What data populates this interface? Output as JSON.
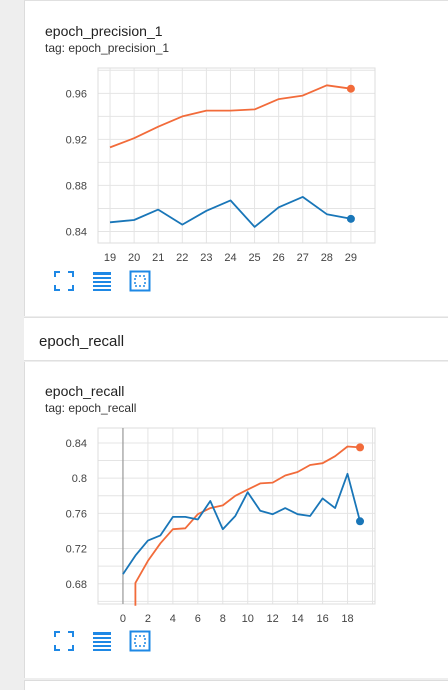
{
  "section": {
    "title": "epoch_recall"
  },
  "charts": [
    {
      "title": "epoch_precision_1",
      "tag": "tag: epoch_precision_1"
    },
    {
      "title": "epoch_recall",
      "tag": "tag: epoch_recall"
    }
  ],
  "icons": [
    "fullscreen-icon",
    "data-table-icon",
    "fit-domain-icon"
  ],
  "colors": {
    "train": "#f26b3a",
    "validation": "#1976b8",
    "icon": "#1e88e5"
  },
  "chart_data": [
    {
      "type": "line",
      "title": "",
      "xlabel": "",
      "ylabel": "",
      "xlim": [
        18.5,
        30
      ],
      "ylim": [
        0.83,
        0.982
      ],
      "x_ticks": [
        19,
        20,
        21,
        22,
        23,
        24,
        25,
        26,
        27,
        28,
        29
      ],
      "y_ticks": [
        0.84,
        0.88,
        0.92,
        0.96
      ],
      "y_tick_labels": [
        "0.84",
        "0.88",
        "0.92",
        "0.96"
      ],
      "grid": true,
      "series": [
        {
          "color": "#f26b3a",
          "x": [
            19,
            20,
            21,
            22,
            23,
            24,
            25,
            26,
            27,
            28,
            29
          ],
          "values": [
            0.913,
            0.921,
            0.931,
            0.94,
            0.945,
            0.945,
            0.946,
            0.955,
            0.958,
            0.967,
            0.964
          ]
        },
        {
          "color": "#1976b8",
          "x": [
            19,
            20,
            21,
            22,
            23,
            24,
            25,
            26,
            27,
            28,
            29
          ],
          "values": [
            0.848,
            0.85,
            0.859,
            0.846,
            0.858,
            0.867,
            0.844,
            0.861,
            0.87,
            0.855,
            0.851
          ]
        }
      ]
    },
    {
      "type": "line",
      "title": "",
      "xlabel": "",
      "ylabel": "",
      "xlim": [
        -2,
        20.2
      ],
      "ylim": [
        0.657,
        0.857
      ],
      "x_ticks": [
        0,
        2,
        4,
        6,
        8,
        10,
        12,
        14,
        16,
        18
      ],
      "y_ticks": [
        0.68,
        0.72,
        0.76,
        0.8,
        0.84
      ],
      "y_tick_labels": [
        "0.68",
        "0.72",
        "0.76",
        "0.8",
        "0.84"
      ],
      "grid": true,
      "series": [
        {
          "color": "#f26b3a",
          "x": [
            1,
            1,
            2,
            3,
            4,
            5,
            6,
            7,
            8,
            9,
            10,
            11,
            12,
            13,
            14,
            15,
            16,
            17,
            18,
            19
          ],
          "values": [
            0.655,
            0.681,
            0.706,
            0.726,
            0.742,
            0.743,
            0.759,
            0.766,
            0.769,
            0.78,
            0.787,
            0.794,
            0.795,
            0.803,
            0.807,
            0.815,
            0.817,
            0.825,
            0.836,
            0.835
          ]
        },
        {
          "color": "#1976b8",
          "x": [
            0,
            1,
            2,
            3,
            4,
            5,
            6,
            7,
            8,
            9,
            10,
            11,
            12,
            13,
            14,
            15,
            16,
            17,
            18,
            19
          ],
          "values": [
            0.691,
            0.712,
            0.729,
            0.735,
            0.756,
            0.756,
            0.753,
            0.774,
            0.742,
            0.757,
            0.784,
            0.763,
            0.759,
            0.766,
            0.759,
            0.757,
            0.777,
            0.766,
            0.805,
            0.751
          ]
        }
      ]
    }
  ]
}
